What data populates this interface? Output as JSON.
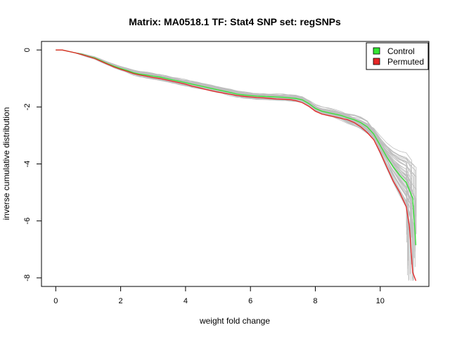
{
  "chart_data": {
    "type": "line",
    "title": "Matrix: MA0518.1 TF: Stat4 SNP set: regSNPs",
    "xlabel": "weight fold change",
    "ylabel": "inverse cumulative distribution",
    "xlim": [
      -0.44,
      11.5
    ],
    "ylim": [
      -8.3,
      0.3
    ],
    "x_ticks": [
      0,
      2,
      4,
      6,
      8,
      10
    ],
    "y_ticks": [
      0,
      -2,
      -4,
      -6,
      -8
    ],
    "legend": {
      "position": "top-right"
    },
    "colors": {
      "control": "#33e633",
      "permuted": "#e62626",
      "background": "#bebebe"
    },
    "series": [
      {
        "name": "Control",
        "color": "#33e633",
        "x": [
          0,
          0.2,
          0.4,
          0.6,
          0.8,
          1.0,
          1.2,
          1.4,
          1.6,
          1.8,
          2.0,
          2.2,
          2.4,
          2.6,
          2.8,
          3.0,
          3.2,
          3.4,
          3.6,
          3.8,
          4.0,
          4.2,
          4.4,
          4.6,
          4.8,
          5.0,
          5.2,
          5.4,
          5.6,
          5.8,
          6.0,
          6.2,
          6.4,
          6.6,
          6.8,
          7.0,
          7.2,
          7.4,
          7.6,
          7.8,
          8.0,
          8.2,
          8.4,
          8.6,
          8.8,
          9.0,
          9.2,
          9.4,
          9.6,
          9.8,
          10.0,
          10.2,
          10.4,
          10.6,
          10.8,
          11.0,
          11.1
        ],
        "y": [
          0,
          0,
          -0.05,
          -0.1,
          -0.15,
          -0.22,
          -0.28,
          -0.38,
          -0.48,
          -0.57,
          -0.65,
          -0.72,
          -0.8,
          -0.85,
          -0.88,
          -0.92,
          -0.95,
          -1.0,
          -1.05,
          -1.1,
          -1.15,
          -1.2,
          -1.25,
          -1.3,
          -1.35,
          -1.4,
          -1.45,
          -1.5,
          -1.55,
          -1.58,
          -1.6,
          -1.62,
          -1.63,
          -1.64,
          -1.65,
          -1.66,
          -1.68,
          -1.7,
          -1.75,
          -1.88,
          -2.05,
          -2.15,
          -2.2,
          -2.25,
          -2.3,
          -2.38,
          -2.45,
          -2.55,
          -2.7,
          -2.95,
          -3.35,
          -3.75,
          -4.1,
          -4.4,
          -4.65,
          -5.2,
          -6.85
        ]
      },
      {
        "name": "Permuted",
        "color": "#e62626",
        "x": [
          0,
          0.2,
          0.4,
          0.6,
          0.8,
          1.0,
          1.2,
          1.4,
          1.6,
          1.8,
          2.0,
          2.2,
          2.4,
          2.6,
          2.8,
          3.0,
          3.2,
          3.4,
          3.6,
          3.8,
          4.0,
          4.2,
          4.4,
          4.6,
          4.8,
          5.0,
          5.2,
          5.4,
          5.6,
          5.8,
          6.0,
          6.2,
          6.4,
          6.6,
          6.8,
          7.0,
          7.2,
          7.4,
          7.6,
          7.8,
          8.0,
          8.2,
          8.4,
          8.6,
          8.8,
          9.0,
          9.2,
          9.4,
          9.6,
          9.8,
          10.0,
          10.2,
          10.4,
          10.6,
          10.8,
          10.9,
          11.0,
          11.1
        ],
        "y": [
          0,
          0,
          -0.05,
          -0.1,
          -0.16,
          -0.23,
          -0.3,
          -0.4,
          -0.5,
          -0.6,
          -0.68,
          -0.75,
          -0.83,
          -0.88,
          -0.92,
          -0.97,
          -1.0,
          -1.05,
          -1.1,
          -1.15,
          -1.2,
          -1.27,
          -1.32,
          -1.38,
          -1.43,
          -1.48,
          -1.52,
          -1.56,
          -1.6,
          -1.63,
          -1.65,
          -1.67,
          -1.68,
          -1.7,
          -1.72,
          -1.73,
          -1.74,
          -1.78,
          -1.85,
          -1.98,
          -2.15,
          -2.25,
          -2.3,
          -2.35,
          -2.4,
          -2.45,
          -2.55,
          -2.7,
          -2.9,
          -3.15,
          -3.6,
          -4.1,
          -4.6,
          -5.0,
          -5.5,
          -6.2,
          -7.8,
          -8.1
        ]
      }
    ]
  }
}
